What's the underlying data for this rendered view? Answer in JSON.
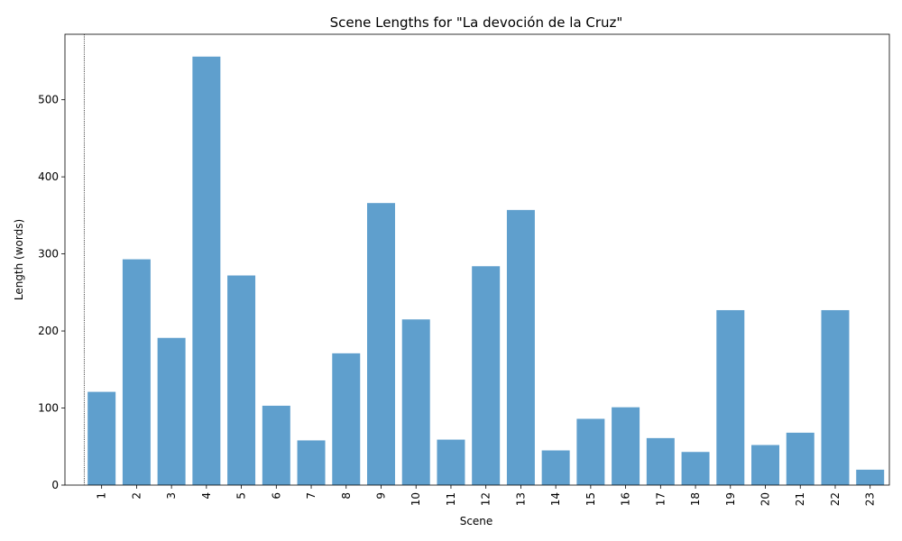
{
  "chart_data": {
    "type": "bar",
    "title": "Scene Lengths for \"La devoción de la Cruz\"",
    "xlabel": "Scene",
    "ylabel": "Length (words)",
    "categories": [
      "1",
      "2",
      "3",
      "4",
      "5",
      "6",
      "7",
      "8",
      "9",
      "10",
      "11",
      "12",
      "13",
      "14",
      "15",
      "16",
      "17",
      "18",
      "19",
      "20",
      "21",
      "22",
      "23"
    ],
    "values": [
      121,
      293,
      191,
      556,
      272,
      103,
      58,
      171,
      366,
      215,
      59,
      284,
      357,
      45,
      86,
      101,
      61,
      43,
      227,
      52,
      68,
      227,
      20
    ],
    "ylim": [
      0,
      585
    ],
    "yticks": [
      0,
      100,
      200,
      300,
      400,
      500
    ],
    "bar_color": "#5f9fcd",
    "grid": false,
    "x_tick_rotation": "vertical",
    "reference_line": {
      "x_position": "before scene 1",
      "style": "dotted",
      "color": "#000000"
    }
  }
}
